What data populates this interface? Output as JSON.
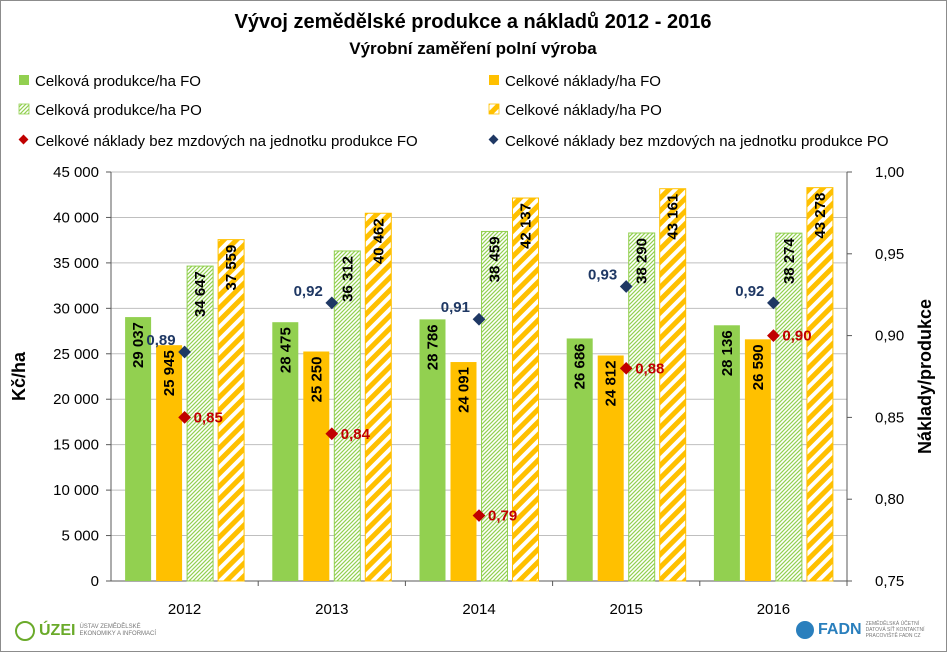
{
  "chart_data": {
    "type": "bar",
    "title": "Vývoj zemědělské produkce a nákladů 2012 - 2016",
    "subtitle": "Výrobní zaměření polní výroba",
    "categories": [
      "2012",
      "2013",
      "2014",
      "2015",
      "2016"
    ],
    "ylabel": "Kč/ha",
    "y2label": "Náklady/produkce",
    "ylim": [
      0,
      45000
    ],
    "y2lim": [
      0.75,
      1.0
    ],
    "yticks": [
      "0",
      "5 000",
      "10 000",
      "15 000",
      "20 000",
      "25 000",
      "30 000",
      "35 000",
      "40 000",
      "45 000"
    ],
    "y2ticks": [
      "0,75",
      "0,80",
      "0,85",
      "0,90",
      "0,95",
      "1,00"
    ],
    "grid": true,
    "legend_position": "top",
    "series": [
      {
        "name": "Celková produkce/ha FO",
        "kind": "bar",
        "style": "solid",
        "color": "#92d050",
        "values": [
          29037,
          28475,
          28786,
          26686,
          28136
        ],
        "labels": [
          "29 037",
          "28 475",
          "28 786",
          "26 686",
          "28 136"
        ]
      },
      {
        "name": "Celkové náklady/ha FO",
        "kind": "bar",
        "style": "solid",
        "color": "#ffc000",
        "values": [
          25945,
          25250,
          24091,
          24812,
          26590
        ],
        "labels": [
          "25 945",
          "25 250",
          "24 091",
          "24 812",
          "26 590"
        ]
      },
      {
        "name": "Celková produkce/ha PO",
        "kind": "bar",
        "style": "hatched",
        "color": "#92d050",
        "values": [
          34647,
          36312,
          38459,
          38290,
          38274
        ],
        "labels": [
          "34 647",
          "36 312",
          "38 459",
          "38 290",
          "38 274"
        ]
      },
      {
        "name": "Celkové náklady/ha PO",
        "kind": "bar",
        "style": "hatched",
        "color": "#ffc000",
        "values": [
          37559,
          40462,
          42137,
          43161,
          43278
        ],
        "labels": [
          "37 559",
          "40 462",
          "42 137",
          "43 161",
          "43 278"
        ]
      },
      {
        "name": "Celkové náklady bez mzdových na jednotku produkce FO",
        "kind": "marker",
        "axis": "y2",
        "color": "#c00000",
        "values": [
          0.85,
          0.84,
          0.79,
          0.88,
          0.9
        ],
        "labels": [
          "0,85",
          "0,84",
          "0,79",
          "0,88",
          "0,90"
        ]
      },
      {
        "name": "Celkové náklady bez mzdových na jednotku produkce PO",
        "kind": "marker",
        "axis": "y2",
        "color": "#1f3864",
        "values": [
          0.89,
          0.92,
          0.91,
          0.93,
          0.92
        ],
        "labels": [
          "0,89",
          "0,92",
          "0,91",
          "0,93",
          "0,92"
        ]
      }
    ]
  },
  "logos": {
    "left_name": "ÚZEI",
    "left_sub": "ÚSTAV ZEMĚDĚLSKÉ EKONOMIKY A INFORMACÍ",
    "right_name": "FADN",
    "right_sub": "ZEMĚDĚLSKÁ ÚČETNÍ DATOVÁ SÍŤ KONTAKTNÍ PRACOVIŠTĚ FADN CZ"
  }
}
